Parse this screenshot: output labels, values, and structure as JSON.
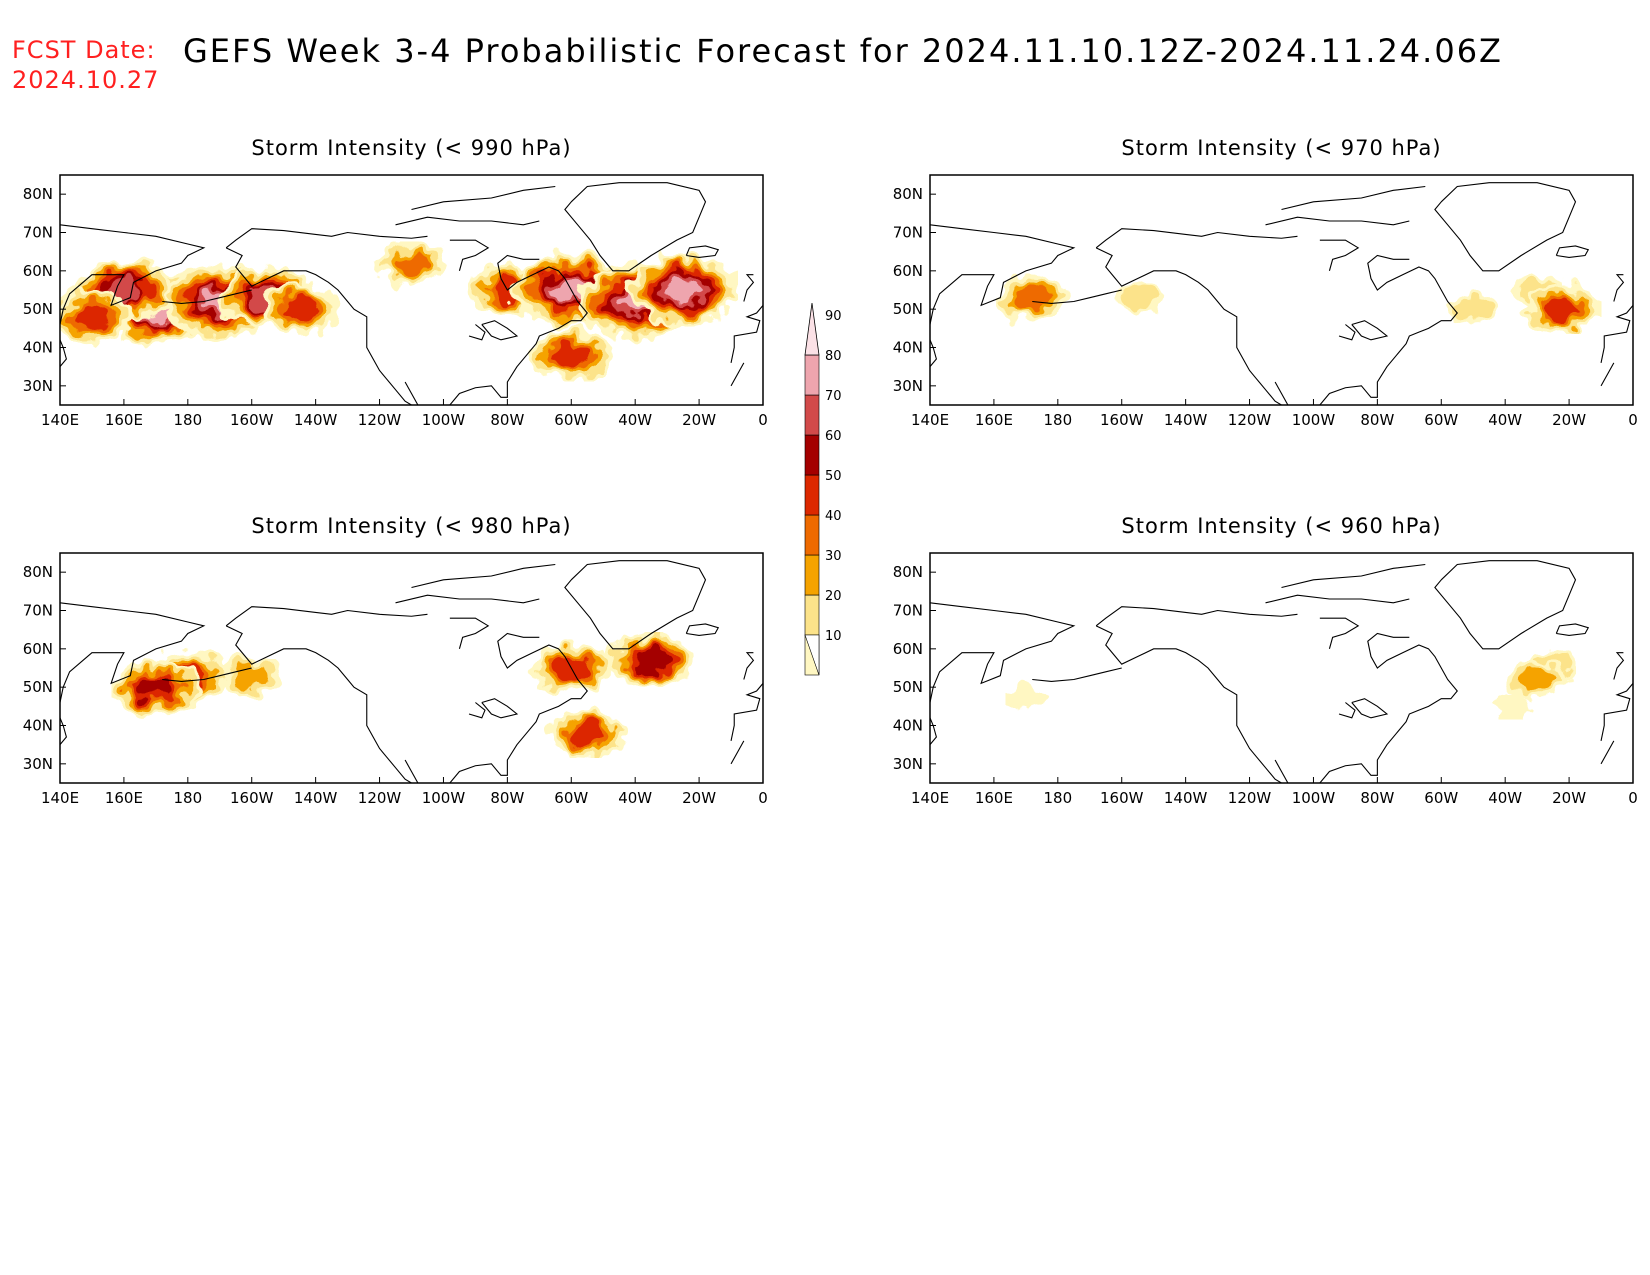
{
  "header": {
    "fcst_label": "FCST Date:",
    "fcst_date": "2024.10.27",
    "title": "GEFS Week 3-4 Probabilistic Forecast for 2024.11.10.12Z-2024.11.24.06Z"
  },
  "map_extent": {
    "lon_min": 140,
    "lon_max": 360,
    "lat_min": 25,
    "lat_max": 85
  },
  "lon_ticks": [
    "140E",
    "160E",
    "180",
    "160W",
    "140W",
    "120W",
    "100W",
    "80W",
    "60W",
    "40W",
    "20W",
    "0"
  ],
  "lat_ticks": [
    "80N",
    "70N",
    "60N",
    "50N",
    "40N",
    "30N"
  ],
  "panels": [
    {
      "id": "p990",
      "title": "Storm Intensity (< 990 hPa)"
    },
    {
      "id": "p970",
      "title": "Storm Intensity (< 970 hPa)"
    },
    {
      "id": "p980",
      "title": "Storm Intensity (< 980 hPa)"
    },
    {
      "id": "p960",
      "title": "Storm Intensity (< 960 hPa)"
    }
  ],
  "colorbar": {
    "labels": [
      "10",
      "20",
      "30",
      "40",
      "50",
      "60",
      "70",
      "80",
      "90"
    ],
    "colors": [
      "#fff7c2",
      "#fce38a",
      "#f5a300",
      "#ee6a00",
      "#dc2800",
      "#a40000",
      "#d24a4a",
      "#eea5ae",
      "#fbe1e6"
    ]
  },
  "chart_data": {
    "type": "heatmap",
    "variable": "probability (%)",
    "levels": [
      10,
      20,
      30,
      40,
      50,
      60,
      70,
      80,
      90
    ],
    "panels": [
      {
        "id": "p990",
        "regions": [
          {
            "lon": 170,
            "lat": 50,
            "value": 85
          },
          {
            "lon": 190,
            "lat": 52,
            "value": 85
          },
          {
            "lon": 205,
            "lat": 53,
            "value": 70
          },
          {
            "lon": 160,
            "lat": 55,
            "value": 70
          },
          {
            "lon": 150,
            "lat": 48,
            "value": 55
          },
          {
            "lon": 215,
            "lat": 50,
            "value": 50
          },
          {
            "lon": 250,
            "lat": 62,
            "value": 40
          },
          {
            "lon": 280,
            "lat": 55,
            "value": 50
          },
          {
            "lon": 300,
            "lat": 55,
            "value": 85
          },
          {
            "lon": 320,
            "lat": 52,
            "value": 85
          },
          {
            "lon": 335,
            "lat": 55,
            "value": 80
          },
          {
            "lon": 300,
            "lat": 38,
            "value": 55
          }
        ]
      },
      {
        "id": "p970",
        "regions": [
          {
            "lon": 175,
            "lat": 52,
            "value": 25
          },
          {
            "lon": 172,
            "lat": 53,
            "value": 45
          },
          {
            "lon": 205,
            "lat": 53,
            "value": 20
          },
          {
            "lon": 310,
            "lat": 50,
            "value": 20
          },
          {
            "lon": 330,
            "lat": 55,
            "value": 25
          },
          {
            "lon": 338,
            "lat": 50,
            "value": 50
          }
        ]
      },
      {
        "id": "p980",
        "regions": [
          {
            "lon": 180,
            "lat": 53,
            "value": 55
          },
          {
            "lon": 170,
            "lat": 50,
            "value": 60
          },
          {
            "lon": 200,
            "lat": 53,
            "value": 35
          },
          {
            "lon": 300,
            "lat": 55,
            "value": 50
          },
          {
            "lon": 325,
            "lat": 57,
            "value": 60
          },
          {
            "lon": 305,
            "lat": 38,
            "value": 50
          }
        ]
      },
      {
        "id": "p960",
        "regions": [
          {
            "lon": 170,
            "lat": 47,
            "value": 15
          },
          {
            "lon": 335,
            "lat": 56,
            "value": 20
          },
          {
            "lon": 330,
            "lat": 52,
            "value": 35
          },
          {
            "lon": 322,
            "lat": 45,
            "value": 15
          }
        ]
      }
    ]
  }
}
